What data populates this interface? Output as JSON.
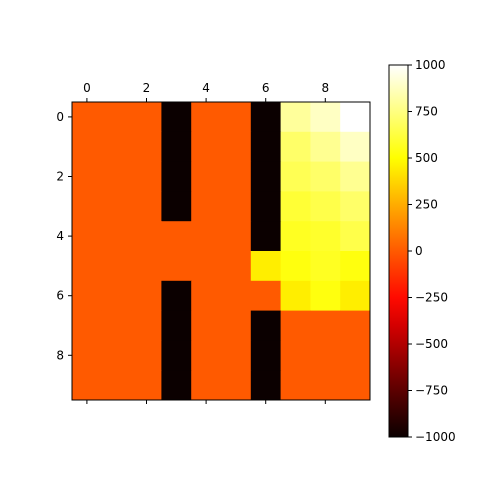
{
  "chart_data": {
    "type": "heatmap",
    "title": "",
    "xlabel": "",
    "ylabel": "",
    "rows": 10,
    "cols": 10,
    "x_ticks": [
      0,
      2,
      4,
      6,
      8
    ],
    "y_ticks": [
      0,
      2,
      4,
      6,
      8
    ],
    "colormap": "hot",
    "vmin": -1000,
    "vmax": 1000,
    "colorbar_ticks": [
      1000,
      750,
      500,
      250,
      0,
      -250,
      -500,
      -750,
      -1000
    ],
    "colorbar_tick_labels": [
      "1000",
      "750",
      "500",
      "250",
      "0",
      "−250",
      "−500",
      "−750",
      "−1000"
    ],
    "values": [
      [
        0,
        0,
        0,
        -1000,
        0,
        0,
        -1000,
        800,
        880,
        1000
      ],
      [
        0,
        0,
        0,
        -1000,
        0,
        0,
        -1000,
        700,
        780,
        880
      ],
      [
        0,
        0,
        0,
        -1000,
        0,
        0,
        -1000,
        660,
        700,
        780
      ],
      [
        0,
        0,
        0,
        -1000,
        0,
        0,
        -1000,
        600,
        640,
        700
      ],
      [
        0,
        0,
        0,
        0,
        0,
        0,
        -1000,
        560,
        580,
        640
      ],
      [
        0,
        0,
        0,
        0,
        0,
        0,
        440,
        520,
        560,
        520
      ],
      [
        0,
        0,
        0,
        -1000,
        0,
        0,
        0,
        440,
        520,
        440
      ],
      [
        0,
        0,
        0,
        -1000,
        0,
        0,
        -1000,
        0,
        0,
        0
      ],
      [
        0,
        0,
        0,
        -1000,
        0,
        0,
        -1000,
        0,
        0,
        0
      ],
      [
        0,
        0,
        0,
        -1000,
        0,
        0,
        -1000,
        0,
        0,
        0
      ]
    ]
  }
}
